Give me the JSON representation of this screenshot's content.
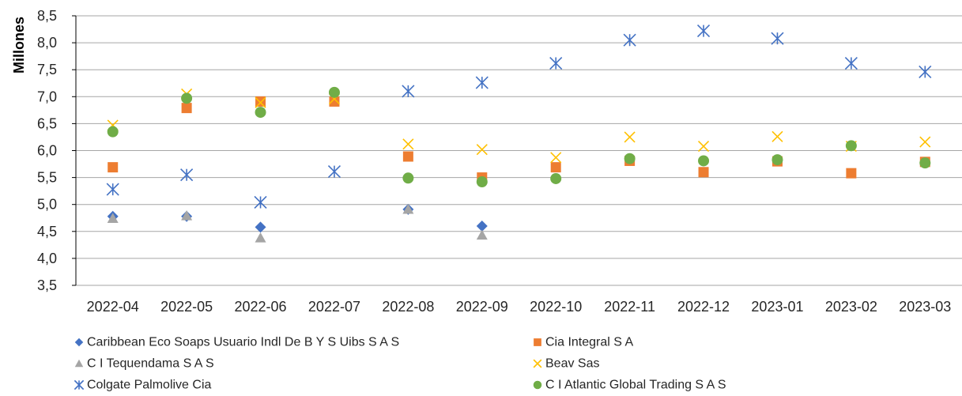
{
  "chart_data": {
    "type": "scatter",
    "ylabel": "Millones",
    "xlabel": "",
    "title": "",
    "ylim": [
      3.5,
      8.5
    ],
    "y_ticks": [
      "3,5",
      "4,0",
      "4,5",
      "5,0",
      "5,5",
      "6,0",
      "6,5",
      "7,0",
      "7,5",
      "8,0",
      "8,5"
    ],
    "y_tick_values": [
      3.5,
      4.0,
      4.5,
      5.0,
      5.5,
      6.0,
      6.5,
      7.0,
      7.5,
      8.0,
      8.5
    ],
    "grid": true,
    "legend_position": "bottom",
    "categories": [
      "2022-04",
      "2022-05",
      "2022-06",
      "2022-07",
      "2022-08",
      "2022-09",
      "2022-10",
      "2022-11",
      "2022-12",
      "2023-01",
      "2023-02",
      "2023-03"
    ],
    "series": [
      {
        "name": "Caribbean Eco Soaps Usuario Indl De B Y S Uibs S A S",
        "marker": "diamond",
        "color": "#4472C4",
        "values": [
          4.78,
          4.78,
          4.58,
          null,
          4.91,
          4.6,
          null,
          null,
          null,
          null,
          null,
          null
        ]
      },
      {
        "name": "Cia Integral S A",
        "marker": "square",
        "color": "#ED7D31",
        "values": [
          5.69,
          6.79,
          6.91,
          6.91,
          5.89,
          5.5,
          5.69,
          5.81,
          5.6,
          5.8,
          5.58,
          5.79
        ]
      },
      {
        "name": "C I Tequendama S A S",
        "marker": "triangle",
        "color": "#A5A5A5",
        "values": [
          4.74,
          4.79,
          4.38,
          null,
          4.91,
          4.43,
          null,
          null,
          null,
          null,
          null,
          null
        ]
      },
      {
        "name": "Beav Sas",
        "marker": "x",
        "color": "#FFC000",
        "values": [
          6.47,
          7.05,
          6.89,
          6.96,
          6.12,
          6.02,
          5.87,
          6.25,
          6.08,
          6.26,
          6.08,
          6.16
        ]
      },
      {
        "name": "Colgate Palmolive Cia",
        "marker": "star",
        "color": "#4472C4",
        "values": [
          5.28,
          5.55,
          5.04,
          5.61,
          7.1,
          7.26,
          7.62,
          8.05,
          8.22,
          8.08,
          7.62,
          7.46
        ]
      },
      {
        "name": "C I Atlantic Global Trading S A S",
        "marker": "circle",
        "color": "#70AD47",
        "values": [
          6.35,
          6.97,
          6.71,
          7.08,
          5.49,
          5.42,
          5.48,
          5.85,
          5.81,
          5.83,
          6.09,
          5.77
        ]
      }
    ]
  }
}
